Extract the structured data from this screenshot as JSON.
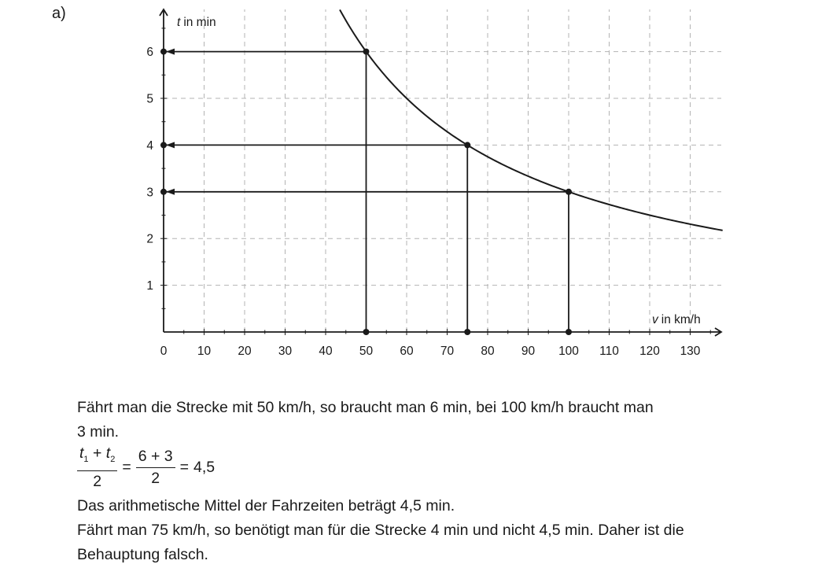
{
  "part_label": "a)",
  "chart_data": {
    "type": "line",
    "title": "",
    "xlabel_var": "v",
    "xlabel_unit": "in km/h",
    "ylabel_var": "t",
    "ylabel_unit": "in min",
    "xlim": [
      0,
      138
    ],
    "ylim": [
      0,
      7
    ],
    "grid": true,
    "x_ticks": [
      0,
      10,
      20,
      30,
      40,
      50,
      60,
      70,
      80,
      90,
      100,
      110,
      120,
      130
    ],
    "x_tick_labels": [
      "0",
      "10",
      "20",
      "30",
      "40",
      "50",
      "60",
      "70",
      "80",
      "90",
      "100",
      "110",
      "120",
      "130"
    ],
    "y_ticks": [
      1,
      2,
      3,
      4,
      5,
      6
    ],
    "y_tick_labels": [
      "1",
      "2",
      "3",
      "4",
      "5",
      "6"
    ],
    "curve": {
      "formula": "t = 300 / v",
      "x_start": 43.5,
      "x_end": 138
    },
    "highlight_points": [
      {
        "x": 50,
        "y": 6
      },
      {
        "x": 75,
        "y": 4
      },
      {
        "x": 100,
        "y": 3
      }
    ],
    "line_color": "#1a1a1a",
    "grid_color": "#b3b3b3"
  },
  "text": {
    "line1": "Fährt man die Strecke mit 50 km/h, so braucht man 6 min, bei 100 km/h braucht man",
    "line2": "3 min.",
    "formula": {
      "num_var1": "t",
      "num_sub1": "1",
      "num_plus": "+",
      "num_var2": "t",
      "num_sub2": "2",
      "den1": "2",
      "eq1": "=",
      "num2": "6 + 3",
      "den2": "2",
      "eq2": "=",
      "result": "4,5"
    },
    "line3": "Das arithmetische Mittel der Fahrzeiten beträgt 4,5 min.",
    "line4": "Fährt man 75 km/h, so benötigt man für die Strecke 4 min und nicht 4,5 min. Daher ist die",
    "line5": "Behauptung falsch."
  }
}
